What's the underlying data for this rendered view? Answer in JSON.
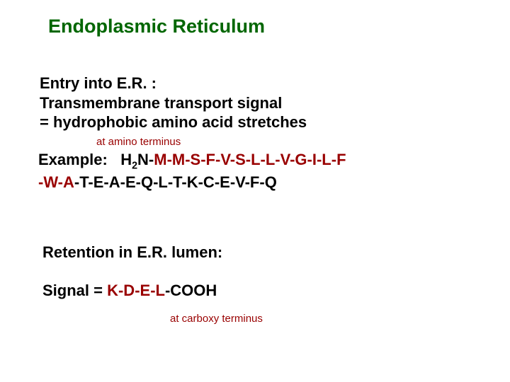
{
  "title": {
    "text": "Endoplasmic Reticulum",
    "color": "#006600",
    "fontsize": 27
  },
  "block1": {
    "line1": "Entry into E.R. :",
    "line2": "Transmembrane transport signal",
    "line3": "= hydrophobic amino acid stretches",
    "fontsize": 22
  },
  "annot1": {
    "text": "at amino terminus",
    "color": "#990000",
    "fontsize": 15
  },
  "example": {
    "label": "Example:",
    "h2n_prefix": "H",
    "h2n_sub": "2",
    "h2n_suffix": "N-",
    "seq_hl1": "M-M-S-F-V-S-L-L-V-G-I-L-F",
    "line2_hl": "-W-A",
    "line2_rest": "-T-E-A-E-Q-L-T-K-C-E-V-F-Q",
    "hl_color": "#990000",
    "fontsize": 22
  },
  "retention": {
    "text": "Retention in E.R. lumen:",
    "fontsize": 22
  },
  "signal": {
    "prefix": "Signal = ",
    "hl": " K-D-E-L",
    "suffix": "-COOH",
    "hl_color": "#990000",
    "fontsize": 22
  },
  "annot2": {
    "text": "at carboxy terminus",
    "color": "#990000",
    "fontsize": 15
  },
  "background_color": "#ffffff"
}
